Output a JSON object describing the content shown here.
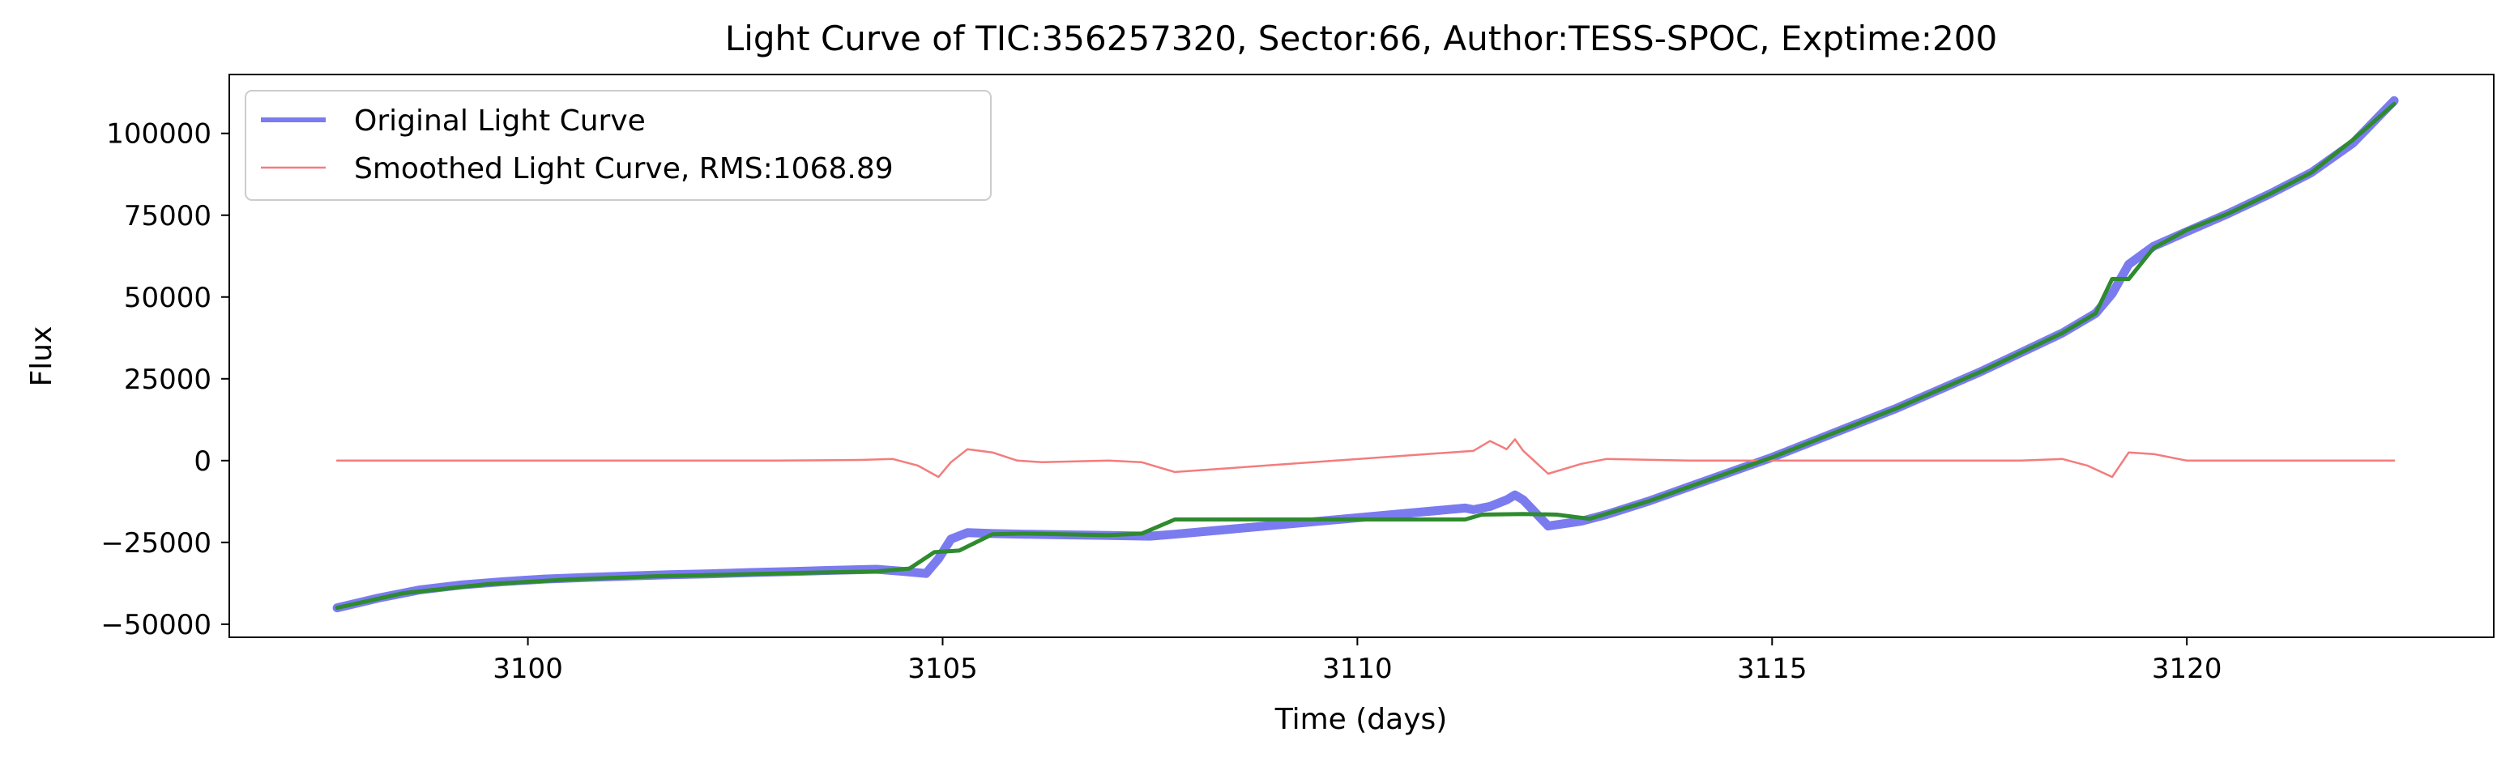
{
  "chart_data": {
    "type": "line",
    "title": "Light Curve of TIC:356257320, Sector:66, Author:TESS-SPOC, Exptime:200",
    "xlabel": "Time (days)",
    "ylabel": "Flux",
    "xlim": [
      3096.4,
      3123.7
    ],
    "ylim": [
      -54000,
      118000
    ],
    "xticks": [
      3100,
      3105,
      3110,
      3115,
      3120
    ],
    "xtick_labels": [
      "3100",
      "3105",
      "3110",
      "3115",
      "3120"
    ],
    "yticks": [
      -50000,
      -25000,
      0,
      25000,
      50000,
      75000,
      100000
    ],
    "ytick_labels": [
      "−50000",
      "−25000",
      "0",
      "25000",
      "50000",
      "75000",
      "100000"
    ],
    "grid": false,
    "legend_position": "upper-left",
    "legend": [
      "Original Light Curve",
      "Smoothed Light Curve, RMS:1068.89"
    ],
    "series": [
      {
        "name": "Original Light Curve",
        "color": "#7b7bf0",
        "x": [
          3097.7,
          3098.2,
          3098.7,
          3099.2,
          3099.7,
          3100.2,
          3100.7,
          3101.2,
          3101.7,
          3102.2,
          3102.7,
          3103.2,
          3103.7,
          3104.2,
          3104.5,
          3104.8,
          3104.95,
          3105.1,
          3105.3,
          3105.6,
          3106.0,
          3106.5,
          3107.0,
          3107.5,
          3107.8,
          3111.3,
          3111.4,
          3111.6,
          3111.8,
          3111.9,
          3112.0,
          3112.3,
          3112.7,
          3113.0,
          3113.5,
          3114.0,
          3114.5,
          3115.0,
          3115.5,
          3116.0,
          3116.5,
          3117.0,
          3117.5,
          3118.0,
          3118.5,
          3118.9,
          3119.1,
          3119.3,
          3119.6,
          3120.0,
          3120.5,
          3121.0,
          3121.5,
          3122.0,
          3122.5
        ],
        "y": [
          -45000,
          -42000,
          -39500,
          -38000,
          -37000,
          -36200,
          -35700,
          -35300,
          -34900,
          -34600,
          -34200,
          -33900,
          -33500,
          -33200,
          -33800,
          -34500,
          -30000,
          -24000,
          -22000,
          -22300,
          -22500,
          -22700,
          -22900,
          -23100,
          -22500,
          -14500,
          -15000,
          -14000,
          -12000,
          -10500,
          -12000,
          -20000,
          -18500,
          -16500,
          -12500,
          -8000,
          -3500,
          1000,
          6000,
          11000,
          16000,
          21500,
          27000,
          33000,
          39000,
          45000,
          51000,
          60000,
          65500,
          70000,
          75500,
          81500,
          88000,
          97000,
          110000
        ]
      },
      {
        "name": "Smoothed Light Curve, RMS:1068.89",
        "color": "#f47c7c",
        "x": [
          3097.7,
          3099.0,
          3101.0,
          3103.0,
          3104.0,
          3104.4,
          3104.7,
          3104.95,
          3105.1,
          3105.3,
          3105.6,
          3105.9,
          3106.2,
          3107.0,
          3107.4,
          3107.8,
          3111.4,
          3111.6,
          3111.8,
          3111.9,
          3112.0,
          3112.3,
          3112.7,
          3113.0,
          3114.0,
          3115.0,
          3116.0,
          3117.0,
          3118.0,
          3118.5,
          3118.8,
          3119.1,
          3119.3,
          3119.6,
          3120.0,
          3121.0,
          3122.0,
          3122.5
        ],
        "y": [
          0,
          0,
          0,
          0,
          200,
          500,
          -1500,
          -5000,
          -500,
          3500,
          2500,
          0,
          -500,
          0,
          -500,
          -3500,
          3000,
          6000,
          3500,
          6500,
          3000,
          -4000,
          -1000,
          500,
          0,
          0,
          0,
          0,
          0,
          500,
          -1500,
          -5000,
          2500,
          2000,
          0,
          0,
          0,
          0
        ]
      },
      {
        "name": "",
        "color": "#2e8b2e",
        "x": [
          3097.7,
          3098.5,
          3099.5,
          3100.5,
          3101.5,
          3102.5,
          3103.5,
          3104.2,
          3104.6,
          3104.9,
          3105.2,
          3105.6,
          3106.0,
          3107.0,
          3107.4,
          3107.8,
          3111.3,
          3111.5,
          3112.0,
          3112.4,
          3112.8,
          3113.5,
          3114.0,
          3114.5,
          3115.0,
          3115.5,
          3116.0,
          3116.5,
          3117.0,
          3117.5,
          3118.0,
          3118.5,
          3118.9,
          3119.1,
          3119.3,
          3119.6,
          3120.0,
          3120.5,
          3121.0,
          3121.5,
          3122.0,
          3122.5
        ],
        "y": [
          -45000,
          -40500,
          -37800,
          -36300,
          -35400,
          -34800,
          -34200,
          -33900,
          -33000,
          -28000,
          -27500,
          -22500,
          -22300,
          -22800,
          -22300,
          -18000,
          -18000,
          -16500,
          -16300,
          -16500,
          -17800,
          -12500,
          -8000,
          -3500,
          1000,
          6000,
          11000,
          16000,
          21500,
          27000,
          33000,
          39000,
          45000,
          55500,
          55500,
          65000,
          70500,
          75500,
          81500,
          88000,
          98000,
          109000
        ]
      }
    ]
  }
}
